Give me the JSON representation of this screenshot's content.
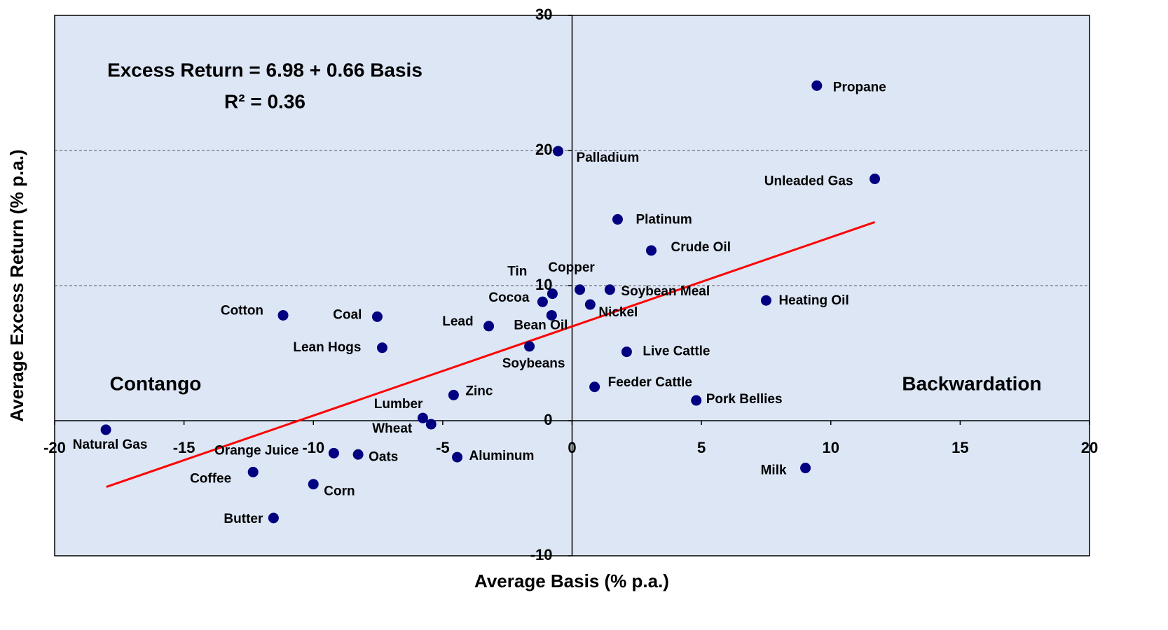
{
  "chart_data": {
    "type": "scatter",
    "xlabel": "Average Basis (% p.a.)",
    "ylabel": "Average Excess Return (% p.a.)",
    "annotations": [
      "Excess Return = 6.98 + 0.66 Basis",
      "R² = 0.36",
      "Contango",
      "Backwardation"
    ],
    "xlim": [
      -20,
      20
    ],
    "xticks": [
      -20,
      -15,
      -10,
      -5,
      0,
      5,
      10,
      15,
      20
    ],
    "ylim": [
      -10,
      30
    ],
    "yticks": [
      -10,
      0,
      10,
      20,
      30
    ],
    "grid": true,
    "points": {
      "color": "#000080",
      "labels": [
        "Propane",
        "Palladium",
        "Unleaded Gas",
        "Platinum",
        "Crude Oil",
        "Copper",
        "Soybean Meal",
        "Tin",
        "Cocoa",
        "Nickel",
        "Heating Oil",
        "Bean Oil",
        "Cotton",
        "Coal",
        "Lead",
        "Lean Hogs",
        "Soybeans",
        "Live Cattle",
        "Zinc",
        "Feeder Cattle",
        "Pork Bellies",
        "Lumber",
        "Wheat",
        "Natural Gas",
        "Orange Juice",
        "Oats",
        "Aluminum",
        "Coffee",
        "Corn",
        "Butter",
        "Milk"
      ],
      "x": [
        9.46,
        -0.54,
        11.7,
        1.76,
        3.06,
        0.3,
        1.46,
        -0.76,
        -1.14,
        0.7,
        7.5,
        -0.79,
        -11.17,
        -7.53,
        -3.22,
        -7.34,
        -1.65,
        2.11,
        -4.58,
        0.87,
        4.8,
        -5.77,
        -5.45,
        -18.02,
        -9.21,
        -8.27,
        -4.44,
        -12.33,
        -10.0,
        -11.54,
        9.02
      ],
      "values": [
        24.8,
        19.95,
        17.9,
        14.9,
        12.6,
        9.7,
        9.7,
        9.4,
        8.8,
        8.6,
        8.9,
        7.8,
        7.8,
        7.7,
        7.0,
        5.4,
        5.5,
        5.1,
        1.9,
        2.5,
        1.5,
        0.2,
        -0.26,
        -0.67,
        -2.4,
        -2.5,
        -2.7,
        -3.8,
        -4.7,
        -7.2,
        -3.5
      ]
    },
    "fit": {
      "color": "#ff0000",
      "x": [
        -18,
        11.7
      ],
      "values": [
        -4.9,
        14.7
      ]
    }
  }
}
